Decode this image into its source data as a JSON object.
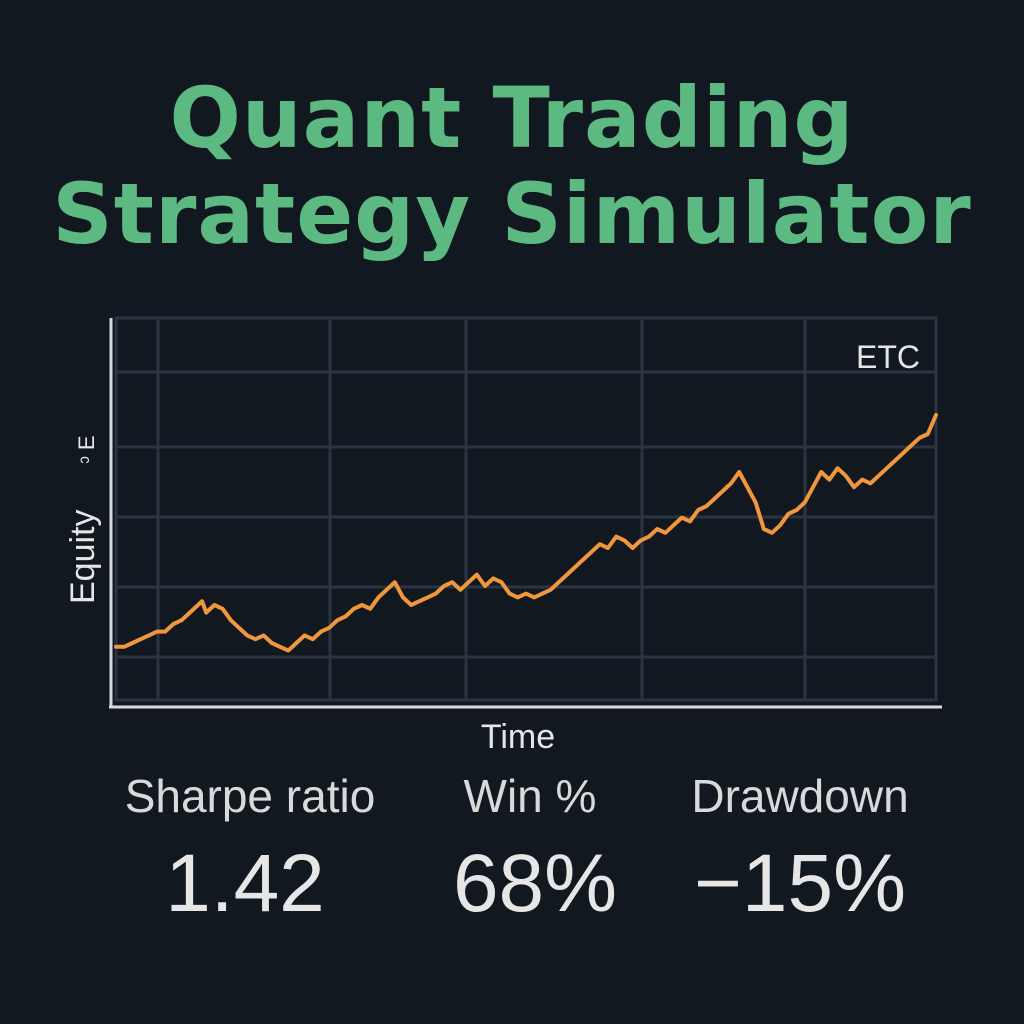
{
  "title": {
    "line1": "Quant Trading",
    "line2": "Strategy Simulator"
  },
  "colors": {
    "background": "#111820",
    "title": "#5bb981",
    "equity_line": "#f0963c",
    "grid": "#2a3442",
    "axis": "#d9d9d9",
    "text": "#e6e6e6"
  },
  "chart_data": {
    "type": "line",
    "xlabel": "Time",
    "ylabel": "Equity",
    "ylabel_suffix": "ᵓ E",
    "legend_label": "ETC",
    "legend_position": "top-right",
    "grid": true,
    "x_ticks_labeled": false,
    "y_ticks_labeled": false,
    "xlim": [
      0,
      100
    ],
    "ylim": [
      0,
      100
    ],
    "series": [
      {
        "values": [
          [
            0,
            14
          ],
          [
            1,
            14
          ],
          [
            2,
            15
          ],
          [
            3,
            16
          ],
          [
            4,
            17
          ],
          [
            5,
            18
          ],
          [
            6,
            18
          ],
          [
            7,
            20
          ],
          [
            8,
            21
          ],
          [
            9,
            23
          ],
          [
            10,
            25
          ],
          [
            10.5,
            26
          ],
          [
            11,
            23
          ],
          [
            12,
            25
          ],
          [
            13,
            24
          ],
          [
            14,
            21
          ],
          [
            15,
            19
          ],
          [
            16,
            17
          ],
          [
            17,
            16
          ],
          [
            18,
            17
          ],
          [
            19,
            15
          ],
          [
            20,
            14
          ],
          [
            21,
            13
          ],
          [
            22,
            15
          ],
          [
            23,
            17
          ],
          [
            24,
            16
          ],
          [
            25,
            18
          ],
          [
            26,
            19
          ],
          [
            27,
            21
          ],
          [
            28,
            22
          ],
          [
            29,
            24
          ],
          [
            30,
            25
          ],
          [
            31,
            24
          ],
          [
            32,
            27
          ],
          [
            33,
            29
          ],
          [
            34,
            31
          ],
          [
            35,
            27
          ],
          [
            36,
            25
          ],
          [
            37,
            26
          ],
          [
            38,
            27
          ],
          [
            39,
            28
          ],
          [
            40,
            30
          ],
          [
            41,
            31
          ],
          [
            42,
            29
          ],
          [
            43,
            31
          ],
          [
            44,
            33
          ],
          [
            45,
            30
          ],
          [
            46,
            32
          ],
          [
            47,
            31
          ],
          [
            48,
            28
          ],
          [
            49,
            27
          ],
          [
            50,
            28
          ],
          [
            51,
            27
          ],
          [
            52,
            28
          ],
          [
            53,
            29
          ],
          [
            54,
            31
          ],
          [
            55,
            33
          ],
          [
            56,
            35
          ],
          [
            57,
            37
          ],
          [
            58,
            39
          ],
          [
            59,
            41
          ],
          [
            60,
            40
          ],
          [
            61,
            43
          ],
          [
            62,
            42
          ],
          [
            63,
            40
          ],
          [
            64,
            42
          ],
          [
            65,
            43
          ],
          [
            66,
            45
          ],
          [
            67,
            44
          ],
          [
            68,
            46
          ],
          [
            69,
            48
          ],
          [
            70,
            47
          ],
          [
            71,
            50
          ],
          [
            72,
            51
          ],
          [
            73,
            53
          ],
          [
            74,
            55
          ],
          [
            75,
            57
          ],
          [
            76,
            60
          ],
          [
            77,
            56
          ],
          [
            78,
            52
          ],
          [
            79,
            45
          ],
          [
            80,
            44
          ],
          [
            81,
            46
          ],
          [
            82,
            49
          ],
          [
            83,
            50
          ],
          [
            84,
            52
          ],
          [
            85,
            56
          ],
          [
            86,
            60
          ],
          [
            87,
            58
          ],
          [
            88,
            61
          ],
          [
            89,
            59
          ],
          [
            90,
            56
          ],
          [
            91,
            58
          ],
          [
            92,
            57
          ],
          [
            93,
            59
          ],
          [
            94,
            61
          ],
          [
            95,
            63
          ],
          [
            96,
            65
          ],
          [
            97,
            67
          ],
          [
            98,
            69
          ],
          [
            99,
            70
          ],
          [
            100,
            75
          ]
        ]
      }
    ]
  },
  "metrics": [
    {
      "label": "Sharpe ratio",
      "value": "1.42"
    },
    {
      "label": "Win %",
      "value": "68%"
    },
    {
      "label": "Drawdown",
      "value": "−15%"
    }
  ]
}
